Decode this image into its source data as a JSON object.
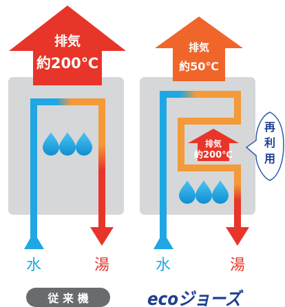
{
  "left": {
    "exhaust_label": "排気",
    "exhaust_temp": "約200℃",
    "water_label": "水",
    "hot_label": "湯",
    "caption": "従 来 機"
  },
  "right": {
    "exhaust_label": "排気",
    "exhaust_temp": "約50℃",
    "inner_label": "排気",
    "inner_temp": "約200℃",
    "water_label": "水",
    "hot_label": "湯",
    "reuse_label": [
      "再",
      "利",
      "用"
    ],
    "logo_text": "ecoジョーズ"
  },
  "colors": {
    "cold_water": "#1ea7e3",
    "hot_water": "#e8352a",
    "warm_pipe": "#f39a3a",
    "exhaust_hot": "#e8352a",
    "exhaust_warm": "#f0652a",
    "unit_body": "#d6d7d8",
    "brand_navy": "#1d3f8f"
  }
}
